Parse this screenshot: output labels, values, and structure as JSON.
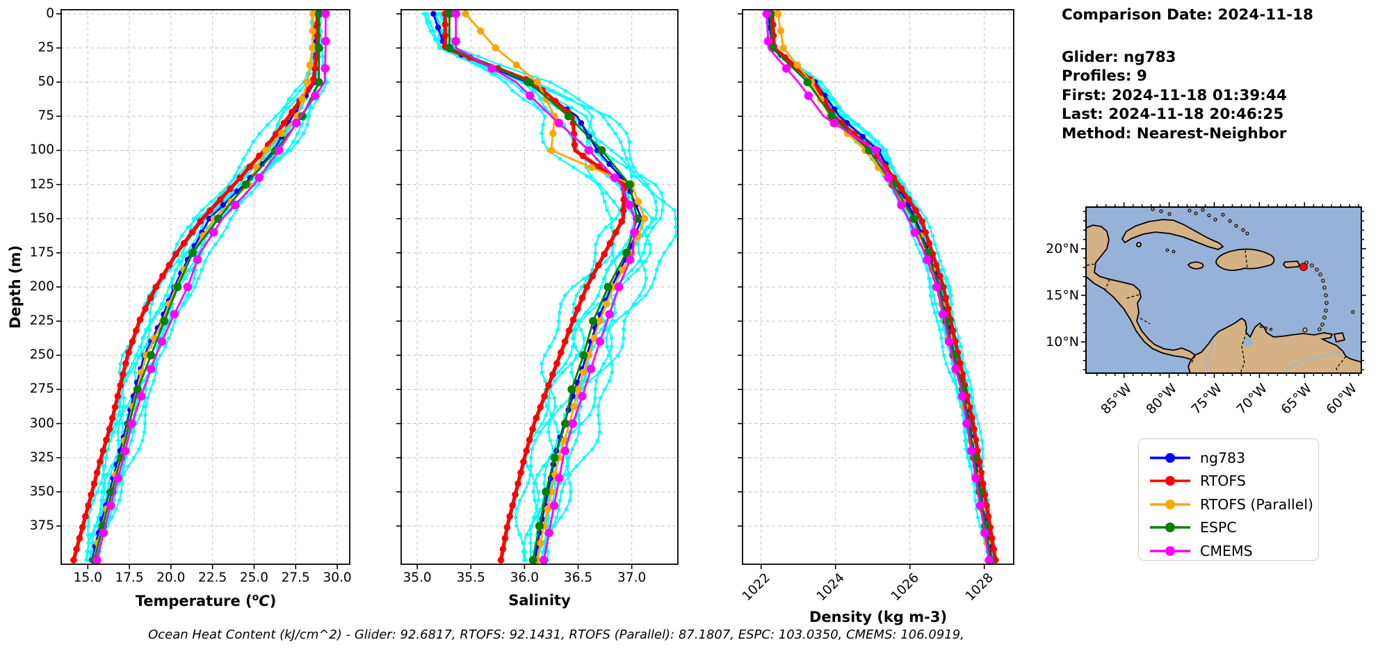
{
  "info_panel": {
    "comparison_date": "Comparison Date: 2024-11-18",
    "glider": "Glider: ng783",
    "profiles": "Profiles: 9",
    "first": "First: 2024-11-18 01:39:44",
    "last": "Last: 2024-11-18 20:46:25",
    "method": "Method: Nearest-Neighbor"
  },
  "footer_note": "Ocean Heat Content (kJ/cm^2) - Glider: 92.6817,  RTOFS: 92.1431,  RTOFS (Parallel): 87.1807,  ESPC: 103.0350,  CMEMS: 106.0919,",
  "depth_axis": {
    "label": "Depth (m)",
    "tick_values": [
      0,
      25,
      50,
      75,
      100,
      125,
      150,
      175,
      200,
      225,
      250,
      275,
      300,
      325,
      350,
      375
    ],
    "range": [
      0,
      403
    ]
  },
  "legend": {
    "items": [
      {
        "label": "ng783",
        "color": "#0000ff"
      },
      {
        "label": "RTOFS",
        "color": "#ff0000"
      },
      {
        "label": "RTOFS (Parallel)",
        "color": "#ffa500"
      },
      {
        "label": "ESPC",
        "color": "#008000"
      },
      {
        "label": "CMEMS",
        "color": "#ff00ff"
      }
    ]
  },
  "chart_data": [
    {
      "id": "temperature",
      "type": "line",
      "xlabel_parts": {
        "prefix": "Temperature (",
        "sup": "o",
        "var": "C",
        "close": ")"
      },
      "xlim": [
        13.4,
        30.75
      ],
      "ylim": [
        403,
        0
      ],
      "x_tick_values": [
        15.0,
        17.5,
        20.0,
        22.5,
        25.0,
        27.5,
        30.0
      ],
      "x_tick_labels": [
        "15.0",
        "17.5",
        "20.0",
        "22.5",
        "25.0",
        "27.5",
        "30.0"
      ],
      "rotate_x_ticks": false,
      "depths": [
        0,
        25,
        50,
        75,
        100,
        125,
        150,
        175,
        200,
        225,
        250,
        275,
        300,
        325,
        350,
        375,
        400
      ],
      "series": [
        {
          "name": "ng783",
          "color": "#0000ff",
          "values": [
            28.75,
            28.75,
            28.65,
            27.3,
            26.2,
            24.4,
            22.3,
            21.2,
            20.2,
            19.4,
            18.4,
            17.85,
            17.35,
            16.85,
            16.3,
            15.75,
            15.25
          ]
        },
        {
          "name": "RTOFS",
          "color": "#ff0000",
          "values": [
            28.8,
            28.8,
            28.55,
            27.1,
            25.6,
            23.8,
            21.9,
            20.35,
            19.1,
            18.1,
            17.4,
            16.9,
            16.4,
            15.8,
            15.25,
            14.7,
            14.15
          ]
        },
        {
          "name": "RTOFS (Parallel)",
          "color": "#ffa500",
          "values": [
            28.55,
            28.5,
            28.2,
            27.6,
            25.7,
            24.65,
            22.6,
            21.3,
            20.3,
            19.5,
            18.5,
            17.95,
            17.45,
            16.95,
            16.4,
            15.85,
            15.35
          ]
        },
        {
          "name": "ESPC",
          "color": "#008000",
          "values": [
            28.9,
            28.9,
            28.9,
            27.9,
            26.3,
            24.5,
            22.85,
            21.3,
            20.4,
            19.6,
            18.8,
            18.0,
            17.5,
            17.0,
            16.45,
            15.9,
            15.4
          ]
        },
        {
          "name": "CMEMS",
          "color": "#ff00ff",
          "values": [
            29.3,
            29.3,
            29.25,
            27.8,
            26.5,
            25.0,
            23.1,
            21.75,
            21.0,
            20.0,
            19.1,
            18.35,
            17.65,
            17.15,
            16.6,
            16.05,
            15.55
          ]
        }
      ],
      "glider_profiles": {
        "name": "glider raw profiles",
        "count": 9,
        "color": "#00ffff",
        "offsets": [
          -1.0,
          -0.72,
          -0.45,
          -0.2,
          0.0,
          0.18,
          0.42,
          0.68,
          0.95
        ],
        "amplitude": 1.0
      }
    },
    {
      "id": "salinity",
      "type": "line",
      "xlabel_parts": {
        "prefix": "Salinity",
        "sup": "",
        "var": "",
        "close": ""
      },
      "xlim": [
        34.85,
        37.43
      ],
      "ylim": [
        403,
        0
      ],
      "x_tick_values": [
        35.0,
        35.5,
        36.0,
        36.5,
        37.0
      ],
      "x_tick_labels": [
        "35.0",
        "35.5",
        "36.0",
        "36.5",
        "37.0"
      ],
      "rotate_x_ticks": false,
      "depths": [
        0,
        25,
        50,
        75,
        100,
        125,
        150,
        175,
        200,
        225,
        250,
        275,
        300,
        325,
        350,
        375,
        400
      ],
      "series": [
        {
          "name": "ng783",
          "color": "#0000ff",
          "values": [
            35.15,
            35.26,
            36.02,
            36.49,
            36.68,
            36.96,
            37.09,
            36.97,
            36.81,
            36.68,
            36.58,
            36.47,
            36.37,
            36.28,
            36.22,
            36.15,
            36.1
          ]
        },
        {
          "name": "RTOFS",
          "color": "#ff0000",
          "values": [
            35.26,
            35.26,
            36.08,
            36.45,
            36.47,
            36.93,
            36.92,
            36.75,
            36.58,
            36.45,
            36.33,
            36.21,
            36.09,
            36.0,
            35.92,
            35.84,
            35.78
          ]
        },
        {
          "name": "RTOFS (Parallel)",
          "color": "#ffa500",
          "values": [
            35.45,
            35.73,
            36.12,
            36.28,
            36.25,
            37.0,
            37.12,
            37.0,
            36.83,
            36.7,
            36.6,
            36.5,
            36.42,
            36.32,
            36.25,
            36.18,
            36.12
          ]
        },
        {
          "name": "ESPC",
          "color": "#008000",
          "values": [
            35.3,
            35.3,
            36.04,
            36.41,
            36.72,
            36.98,
            37.05,
            36.95,
            36.78,
            36.64,
            36.55,
            36.44,
            36.38,
            36.28,
            36.2,
            36.14,
            36.08
          ]
        },
        {
          "name": "CMEMS",
          "color": "#ff00ff",
          "values": [
            35.36,
            35.36,
            35.92,
            36.25,
            36.6,
            36.9,
            37.03,
            37.01,
            36.88,
            36.77,
            36.66,
            36.56,
            36.45,
            36.36,
            36.3,
            36.24,
            36.18
          ]
        }
      ],
      "glider_profiles": {
        "name": "glider raw profiles",
        "count": 9,
        "color": "#00ffff",
        "offsets": [
          -1.0,
          -0.72,
          -0.45,
          -0.2,
          0.0,
          0.18,
          0.42,
          0.68,
          0.95
        ],
        "amplitude": 0.3
      }
    },
    {
      "id": "density",
      "type": "line",
      "xlabel_parts": {
        "prefix": "Density (kg m-3)",
        "sup": "",
        "var": "",
        "close": ""
      },
      "xlim": [
        1021.5,
        1028.79
      ],
      "ylim": [
        403,
        0
      ],
      "x_tick_values": [
        1022,
        1024,
        1026,
        1028
      ],
      "x_tick_labels": [
        "1022",
        "1024",
        "1026",
        "1028"
      ],
      "rotate_x_ticks": true,
      "depths": [
        0,
        25,
        50,
        75,
        100,
        125,
        150,
        175,
        200,
        225,
        250,
        275,
        300,
        325,
        350,
        375,
        400
      ],
      "series": [
        {
          "name": "ng783",
          "color": "#0000ff",
          "values": [
            1022.2,
            1022.3,
            1023.45,
            1024.1,
            1025.15,
            1025.65,
            1026.15,
            1026.5,
            1026.8,
            1027.0,
            1027.2,
            1027.45,
            1027.6,
            1027.75,
            1027.9,
            1028.05,
            1028.2
          ]
        },
        {
          "name": "RTOFS",
          "color": "#ff0000",
          "values": [
            1022.3,
            1022.35,
            1023.4,
            1023.95,
            1025.0,
            1025.7,
            1026.3,
            1026.6,
            1026.9,
            1027.1,
            1027.3,
            1027.5,
            1027.7,
            1027.85,
            1028.0,
            1028.15,
            1028.3
          ]
        },
        {
          "name": "RTOFS (Parallel)",
          "color": "#ffa500",
          "values": [
            1022.45,
            1022.6,
            1023.35,
            1023.85,
            1024.8,
            1025.5,
            1026.1,
            1026.45,
            1026.75,
            1026.95,
            1027.15,
            1027.4,
            1027.55,
            1027.7,
            1027.85,
            1028.0,
            1028.15
          ]
        },
        {
          "name": "ESPC",
          "color": "#008000",
          "values": [
            1022.25,
            1022.3,
            1023.25,
            1023.9,
            1024.9,
            1025.55,
            1026.1,
            1026.48,
            1026.78,
            1026.98,
            1027.18,
            1027.43,
            1027.58,
            1027.73,
            1027.88,
            1028.03,
            1028.18
          ]
        },
        {
          "name": "CMEMS",
          "color": "#ff00ff",
          "values": [
            1022.15,
            1022.2,
            1023.0,
            1023.68,
            1025.08,
            1025.5,
            1025.95,
            1026.4,
            1026.72,
            1026.93,
            1027.13,
            1027.38,
            1027.53,
            1027.68,
            1027.83,
            1027.98,
            1028.13
          ]
        }
      ],
      "glider_profiles": {
        "name": "glider raw profiles",
        "count": 9,
        "color": "#00ffff",
        "offsets": [
          -1.0,
          -0.72,
          -0.45,
          -0.2,
          0.0,
          0.18,
          0.42,
          0.68,
          0.95
        ],
        "amplitude": 0.22
      }
    }
  ],
  "map": {
    "lat_tick_labels": [
      "20°N",
      "15°N",
      "10°N"
    ],
    "lon_tick_labels": [
      "85°W",
      "80°W",
      "75°W",
      "70°W",
      "65°W",
      "60°W"
    ],
    "ocean_color": "#97b2d8",
    "land_color": "#d4b285",
    "marker_color": "#ff0000"
  }
}
